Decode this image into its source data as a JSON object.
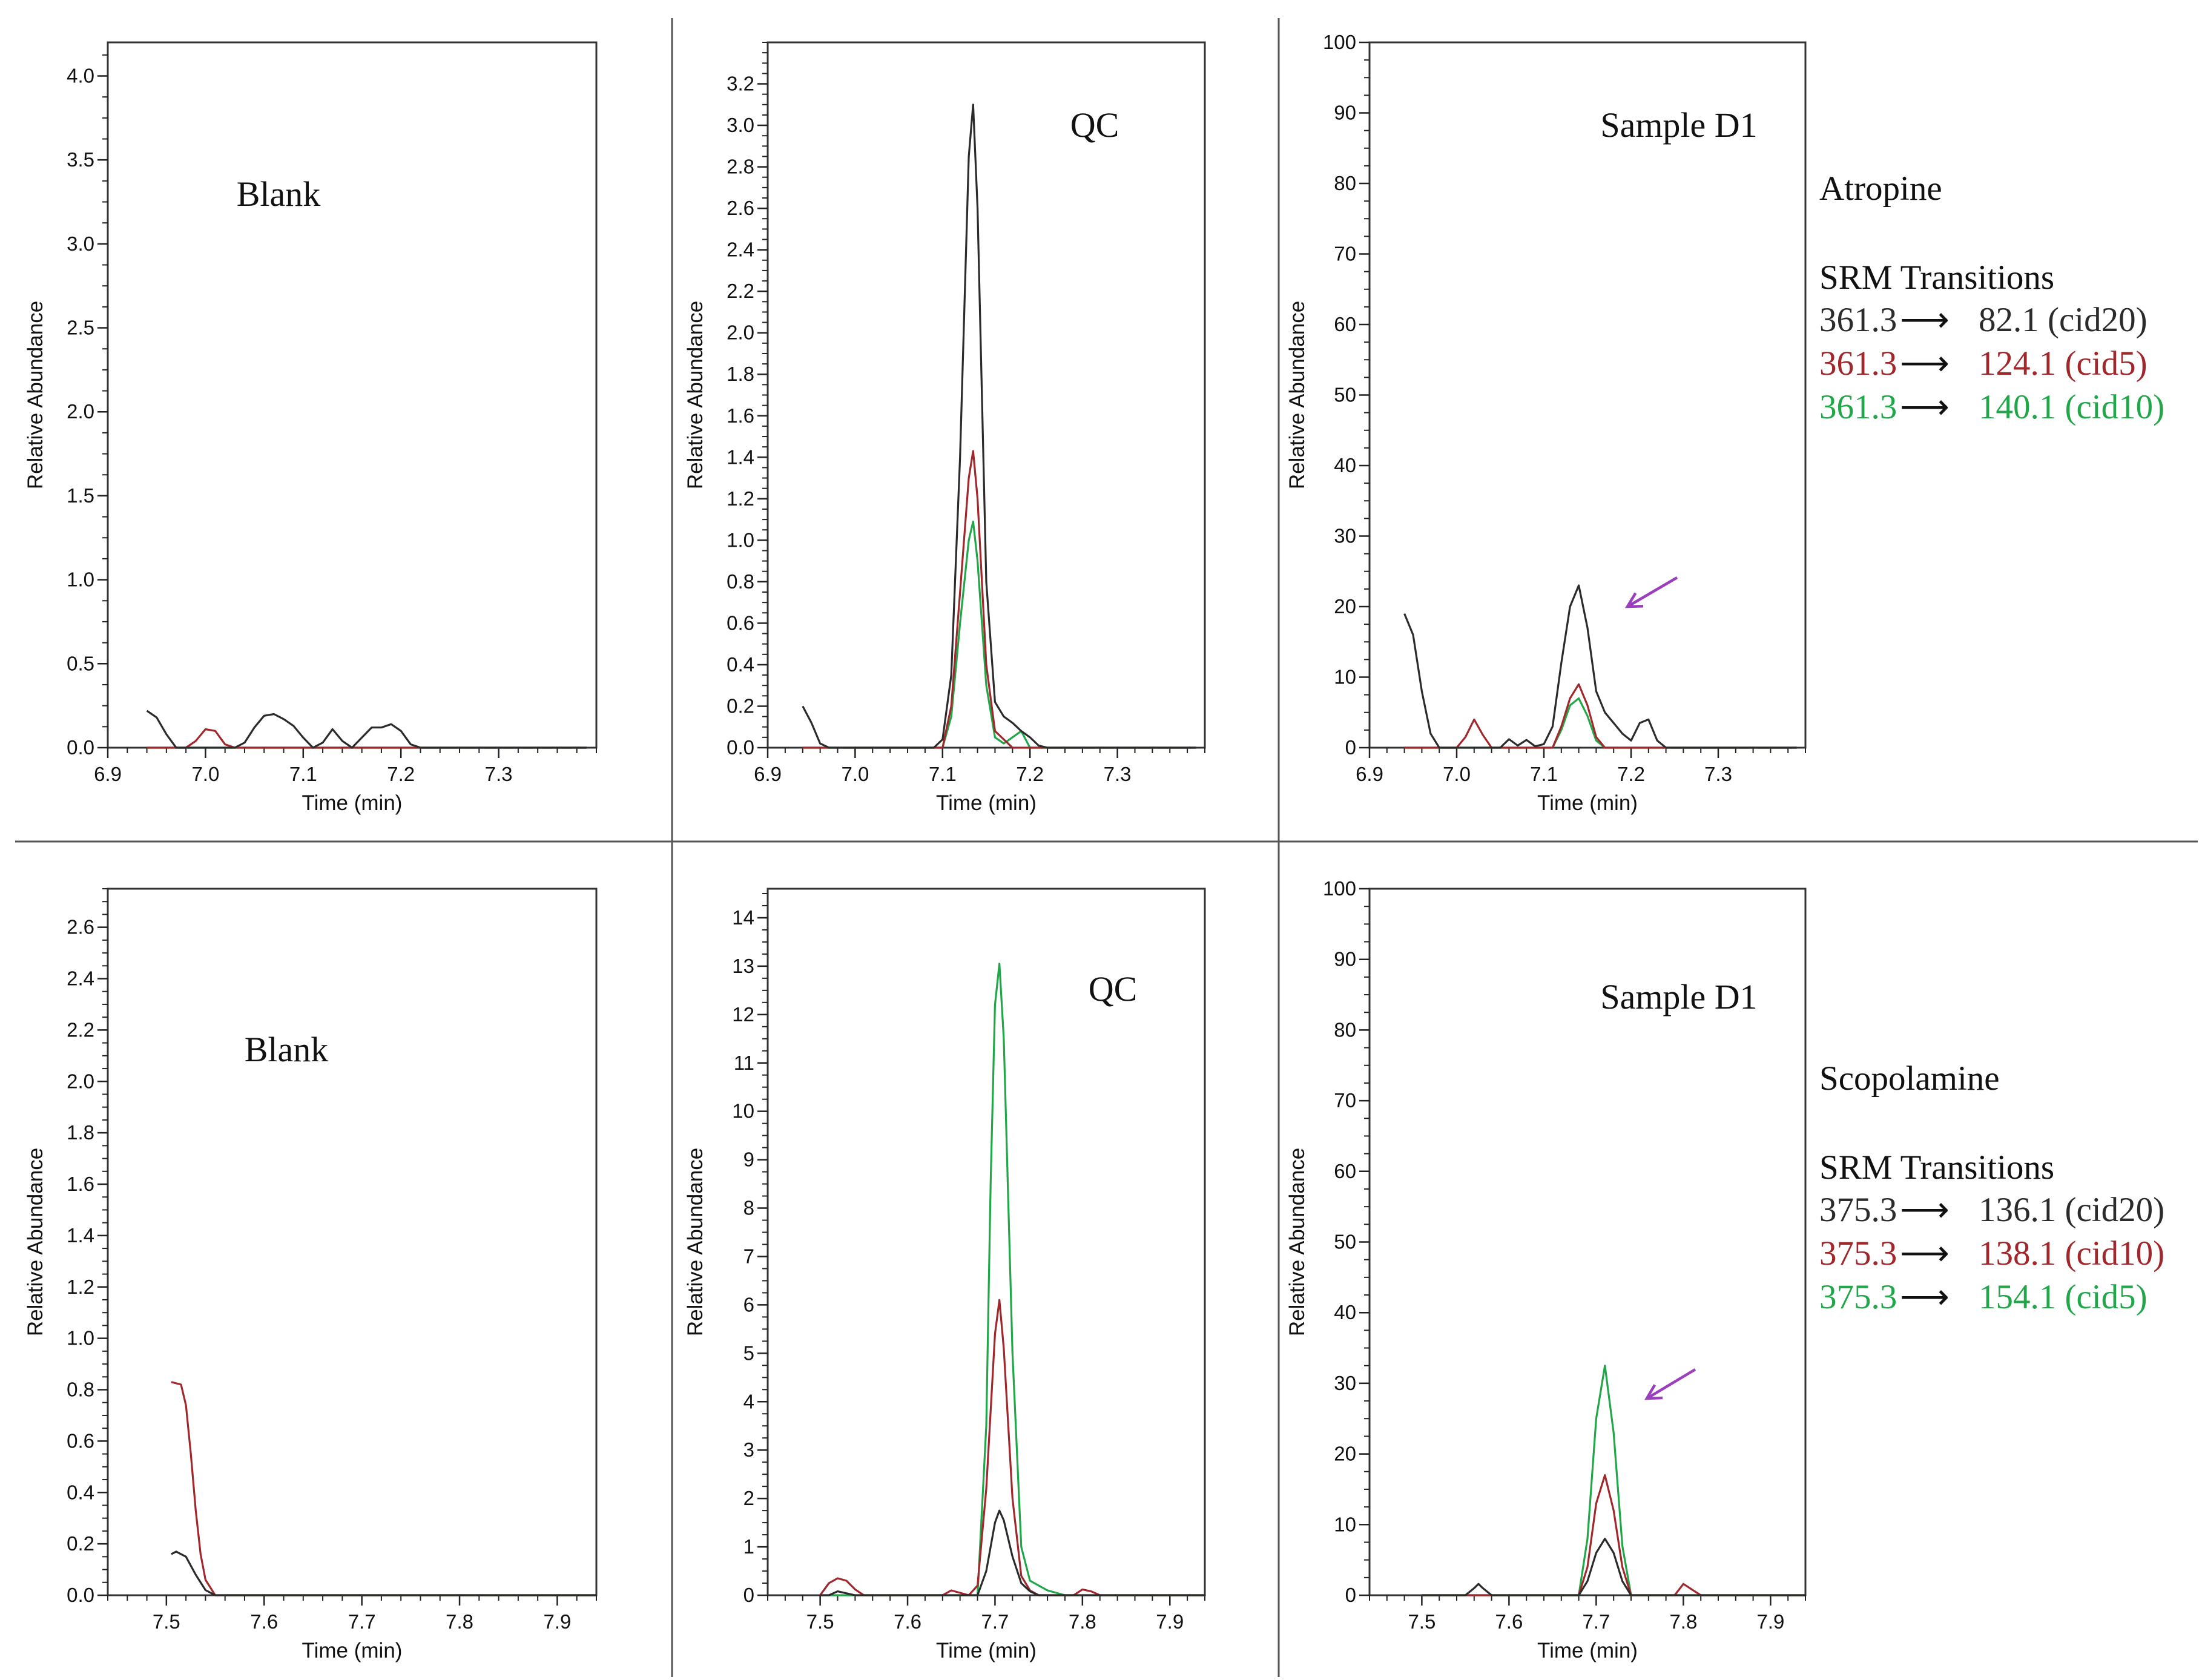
{
  "colors": {
    "black_trace": "#2b2b2b",
    "red_trace": "#a0282d",
    "green_trace": "#22a64a",
    "arrow": "#9b3fbf"
  },
  "rows": [
    {
      "compound": "Atropine",
      "srm_heading": "SRM Transitions",
      "transitions": [
        {
          "precursor": "361.3",
          "product": "82.1 (cid20)",
          "color": "black_trace"
        },
        {
          "precursor": "361.3",
          "product": "124.1 (cid5)",
          "color": "red_trace"
        },
        {
          "precursor": "361.3",
          "product": "140.1 (cid10)",
          "color": "green_trace"
        }
      ]
    },
    {
      "compound": "Scopolamine",
      "srm_heading": "SRM Transitions",
      "transitions": [
        {
          "precursor": "375.3",
          "product": "136.1 (cid20)",
          "color": "black_trace"
        },
        {
          "precursor": "375.3",
          "product": "138.1 (cid10)",
          "color": "red_trace"
        },
        {
          "precursor": "375.3",
          "product": "154.1 (cid5)",
          "color": "green_trace"
        }
      ]
    }
  ],
  "chart_data": [
    {
      "type": "line",
      "row": 0,
      "col": 0,
      "label": "Blank",
      "xlabel": "Time (min)",
      "ylabel": "Relative Abundance",
      "xlim": [
        6.9,
        7.4
      ],
      "ylim": [
        0,
        4.2
      ],
      "xticks": [
        "6.9",
        "7.0",
        "7.1",
        "7.2",
        "7.3"
      ],
      "yticks": [
        "0.0",
        "0.5",
        "1.0",
        "1.5",
        "2.0",
        "2.5",
        "3.0",
        "3.5",
        "4.0"
      ],
      "grid": false,
      "arrow": false,
      "series": [
        {
          "color": "black_trace",
          "x": [
            6.94,
            6.95,
            6.96,
            6.97,
            6.98,
            6.99,
            7.0,
            7.01,
            7.02,
            7.03,
            7.04,
            7.05,
            7.06,
            7.07,
            7.08,
            7.09,
            7.1,
            7.11,
            7.12,
            7.13,
            7.14,
            7.15,
            7.16,
            7.17,
            7.18,
            7.19,
            7.2,
            7.21,
            7.22,
            7.3,
            7.39
          ],
          "y": [
            0.22,
            0.18,
            0.08,
            0.0,
            0.0,
            0.0,
            0.0,
            0.0,
            0.0,
            0.0,
            0.03,
            0.12,
            0.19,
            0.2,
            0.17,
            0.13,
            0.06,
            0.0,
            0.03,
            0.11,
            0.04,
            0.0,
            0.06,
            0.12,
            0.12,
            0.14,
            0.1,
            0.02,
            0.0,
            0.0,
            0.0
          ]
        },
        {
          "color": "red_trace",
          "x": [
            6.94,
            6.98,
            6.99,
            7.0,
            7.01,
            7.02,
            7.03,
            7.39
          ],
          "y": [
            0.0,
            0.0,
            0.04,
            0.11,
            0.1,
            0.02,
            0.0,
            0.0
          ]
        },
        {
          "color": "green_trace",
          "x": [
            6.94,
            7.39
          ],
          "y": [
            0.0,
            0.0
          ]
        }
      ]
    },
    {
      "type": "line",
      "row": 0,
      "col": 1,
      "label": "QC",
      "xlabel": "Time (min)",
      "ylabel": "Relative Abundance",
      "xlim": [
        6.9,
        7.4
      ],
      "ylim": [
        0,
        3.4
      ],
      "xticks": [
        "6.9",
        "7.0",
        "7.1",
        "7.2",
        "7.3"
      ],
      "yticks": [
        "0.0",
        "0.2",
        "0.4",
        "0.6",
        "0.8",
        "1.0",
        "1.2",
        "1.4",
        "1.6",
        "1.8",
        "2.0",
        "2.2",
        "2.4",
        "2.6",
        "2.8",
        "3.0",
        "3.2"
      ],
      "grid": false,
      "arrow": false,
      "series": [
        {
          "color": "black_trace",
          "x": [
            6.94,
            6.95,
            6.96,
            6.97,
            7.09,
            7.1,
            7.11,
            7.12,
            7.13,
            7.135,
            7.14,
            7.15,
            7.16,
            7.17,
            7.18,
            7.19,
            7.2,
            7.21,
            7.22,
            7.39
          ],
          "y": [
            0.2,
            0.12,
            0.02,
            0.0,
            0.0,
            0.04,
            0.35,
            1.4,
            2.85,
            3.1,
            2.6,
            0.8,
            0.22,
            0.15,
            0.12,
            0.08,
            0.05,
            0.01,
            0.0,
            0.0
          ]
        },
        {
          "color": "red_trace",
          "x": [
            6.94,
            7.1,
            7.11,
            7.12,
            7.13,
            7.135,
            7.14,
            7.15,
            7.16,
            7.17,
            7.18,
            7.39
          ],
          "y": [
            0.0,
            0.0,
            0.2,
            0.75,
            1.3,
            1.43,
            1.2,
            0.4,
            0.08,
            0.04,
            0.0,
            0.0
          ]
        },
        {
          "color": "green_trace",
          "x": [
            6.94,
            7.1,
            7.11,
            7.12,
            7.13,
            7.135,
            7.14,
            7.15,
            7.16,
            7.17,
            7.18,
            7.19,
            7.2,
            7.39
          ],
          "y": [
            0.0,
            0.0,
            0.15,
            0.6,
            1.0,
            1.09,
            0.9,
            0.3,
            0.05,
            0.02,
            0.05,
            0.08,
            0.0,
            0.0
          ]
        }
      ]
    },
    {
      "type": "line",
      "row": 0,
      "col": 2,
      "label": "Sample D1",
      "xlabel": "Time (min)",
      "ylabel": "Relative Abundance",
      "xlim": [
        6.9,
        7.4
      ],
      "ylim": [
        0,
        100
      ],
      "xticks": [
        "6.9",
        "7.0",
        "7.1",
        "7.2",
        "7.3"
      ],
      "yticks": [
        "0",
        "10",
        "20",
        "30",
        "40",
        "50",
        "60",
        "70",
        "80",
        "90",
        "100"
      ],
      "grid": false,
      "arrow": true,
      "series": [
        {
          "color": "black_trace",
          "x": [
            6.94,
            6.95,
            6.96,
            6.97,
            6.98,
            6.99,
            7.05,
            7.06,
            7.07,
            7.08,
            7.09,
            7.1,
            7.11,
            7.12,
            7.13,
            7.14,
            7.15,
            7.16,
            7.17,
            7.18,
            7.19,
            7.2,
            7.21,
            7.22,
            7.23,
            7.24,
            7.39
          ],
          "y": [
            19,
            16,
            8,
            2,
            0,
            0,
            0,
            1.2,
            0.3,
            1.1,
            0.2,
            0.5,
            3,
            12,
            20,
            23,
            17,
            8,
            5,
            3.5,
            2,
            1,
            3.5,
            4,
            1,
            0,
            0
          ]
        },
        {
          "color": "red_trace",
          "x": [
            6.94,
            7.0,
            7.01,
            7.02,
            7.03,
            7.04,
            7.11,
            7.12,
            7.13,
            7.14,
            7.15,
            7.16,
            7.17,
            7.39
          ],
          "y": [
            0,
            0,
            1.5,
            4,
            1.8,
            0,
            0,
            3,
            7,
            9,
            6,
            1.5,
            0,
            0
          ]
        },
        {
          "color": "green_trace",
          "x": [
            6.94,
            7.11,
            7.12,
            7.13,
            7.14,
            7.15,
            7.16,
            7.17,
            7.39
          ],
          "y": [
            0,
            0,
            2.5,
            6,
            7,
            4.5,
            1,
            0,
            0
          ]
        }
      ]
    },
    {
      "type": "line",
      "row": 1,
      "col": 0,
      "label": "Blank",
      "xlabel": "Time (min)",
      "ylabel": "Relative Abundance",
      "xlim": [
        7.44,
        7.94
      ],
      "ylim": [
        0,
        2.75
      ],
      "xticks": [
        "7.5",
        "7.6",
        "7.7",
        "7.8",
        "7.9"
      ],
      "yticks": [
        "0.0",
        "0.2",
        "0.4",
        "0.6",
        "0.8",
        "1.0",
        "1.2",
        "1.4",
        "1.6",
        "1.8",
        "2.0",
        "2.2",
        "2.4",
        "2.6"
      ],
      "grid": false,
      "arrow": false,
      "series": [
        {
          "color": "black_trace",
          "x": [
            7.505,
            7.51,
            7.52,
            7.53,
            7.54,
            7.55,
            7.56,
            7.94
          ],
          "y": [
            0.16,
            0.17,
            0.15,
            0.08,
            0.02,
            0.0,
            0.0,
            0.0
          ]
        },
        {
          "color": "red_trace",
          "x": [
            7.505,
            7.515,
            7.52,
            7.525,
            7.53,
            7.535,
            7.54,
            7.55,
            7.56,
            7.94
          ],
          "y": [
            0.83,
            0.82,
            0.74,
            0.55,
            0.33,
            0.16,
            0.06,
            0.0,
            0.0,
            0.0
          ]
        },
        {
          "color": "green_trace",
          "x": [
            7.56,
            7.94
          ],
          "y": [
            0.0,
            0.0
          ]
        }
      ]
    },
    {
      "type": "line",
      "row": 1,
      "col": 1,
      "label": "QC",
      "xlabel": "Time (min)",
      "ylabel": "Relative Abundance",
      "xlim": [
        7.44,
        7.94
      ],
      "ylim": [
        0,
        14.6
      ],
      "xticks": [
        "7.5",
        "7.6",
        "7.7",
        "7.8",
        "7.9"
      ],
      "yticks": [
        "0",
        "1",
        "2",
        "3",
        "4",
        "5",
        "6",
        "7",
        "8",
        "9",
        "10",
        "11",
        "12",
        "13",
        "14"
      ],
      "grid": false,
      "arrow": false,
      "series": [
        {
          "color": "black_trace",
          "x": [
            7.5,
            7.51,
            7.52,
            7.53,
            7.54,
            7.55,
            7.68,
            7.69,
            7.7,
            7.705,
            7.71,
            7.72,
            7.73,
            7.74,
            7.75,
            7.94
          ],
          "y": [
            0,
            0,
            0.08,
            0.04,
            0,
            0,
            0,
            0.5,
            1.5,
            1.75,
            1.55,
            0.8,
            0.25,
            0.08,
            0,
            0
          ]
        },
        {
          "color": "red_trace",
          "x": [
            7.5,
            7.51,
            7.52,
            7.53,
            7.54,
            7.55,
            7.64,
            7.65,
            7.66,
            7.67,
            7.68,
            7.69,
            7.7,
            7.705,
            7.71,
            7.72,
            7.73,
            7.74,
            7.75,
            7.79,
            7.8,
            7.81,
            7.82,
            7.94
          ],
          "y": [
            0,
            0.25,
            0.35,
            0.3,
            0.12,
            0,
            0,
            0.1,
            0.05,
            0,
            0.2,
            2.2,
            5.4,
            6.1,
            5.1,
            2,
            0.4,
            0.1,
            0,
            0,
            0.12,
            0.08,
            0,
            0
          ]
        },
        {
          "color": "green_trace",
          "x": [
            7.5,
            7.68,
            7.69,
            7.695,
            7.7,
            7.705,
            7.71,
            7.72,
            7.73,
            7.74,
            7.75,
            7.76,
            7.77,
            7.78,
            7.94
          ],
          "y": [
            0,
            0,
            3.5,
            8.5,
            12.2,
            13.05,
            11.5,
            5,
            1,
            0.3,
            0.2,
            0.1,
            0.05,
            0,
            0
          ]
        }
      ]
    },
    {
      "type": "line",
      "row": 1,
      "col": 2,
      "label": "Sample D1",
      "xlabel": "Time (min)",
      "ylabel": "Relative Abundance",
      "xlim": [
        7.44,
        7.94
      ],
      "ylim": [
        0,
        100
      ],
      "xticks": [
        "7.5",
        "7.6",
        "7.7",
        "7.8",
        "7.9"
      ],
      "yticks": [
        "0",
        "10",
        "20",
        "30",
        "40",
        "50",
        "60",
        "70",
        "80",
        "90",
        "100"
      ],
      "grid": false,
      "arrow": true,
      "series": [
        {
          "color": "black_trace",
          "x": [
            7.5,
            7.55,
            7.56,
            7.565,
            7.57,
            7.58,
            7.68,
            7.69,
            7.7,
            7.71,
            7.72,
            7.73,
            7.74,
            7.94
          ],
          "y": [
            0,
            0,
            1,
            1.6,
            1,
            0,
            0,
            2,
            6,
            8,
            6,
            2,
            0,
            0
          ]
        },
        {
          "color": "red_trace",
          "x": [
            7.5,
            7.68,
            7.69,
            7.7,
            7.71,
            7.72,
            7.73,
            7.74,
            7.79,
            7.8,
            7.81,
            7.82,
            7.94
          ],
          "y": [
            0,
            0,
            4,
            13,
            17,
            12,
            4,
            0,
            0,
            1.6,
            0.8,
            0,
            0
          ]
        },
        {
          "color": "green_trace",
          "x": [
            7.5,
            7.68,
            7.69,
            7.7,
            7.71,
            7.72,
            7.73,
            7.74,
            7.94
          ],
          "y": [
            0,
            0,
            8,
            25,
            32.5,
            23,
            7,
            0,
            0
          ]
        }
      ]
    }
  ]
}
